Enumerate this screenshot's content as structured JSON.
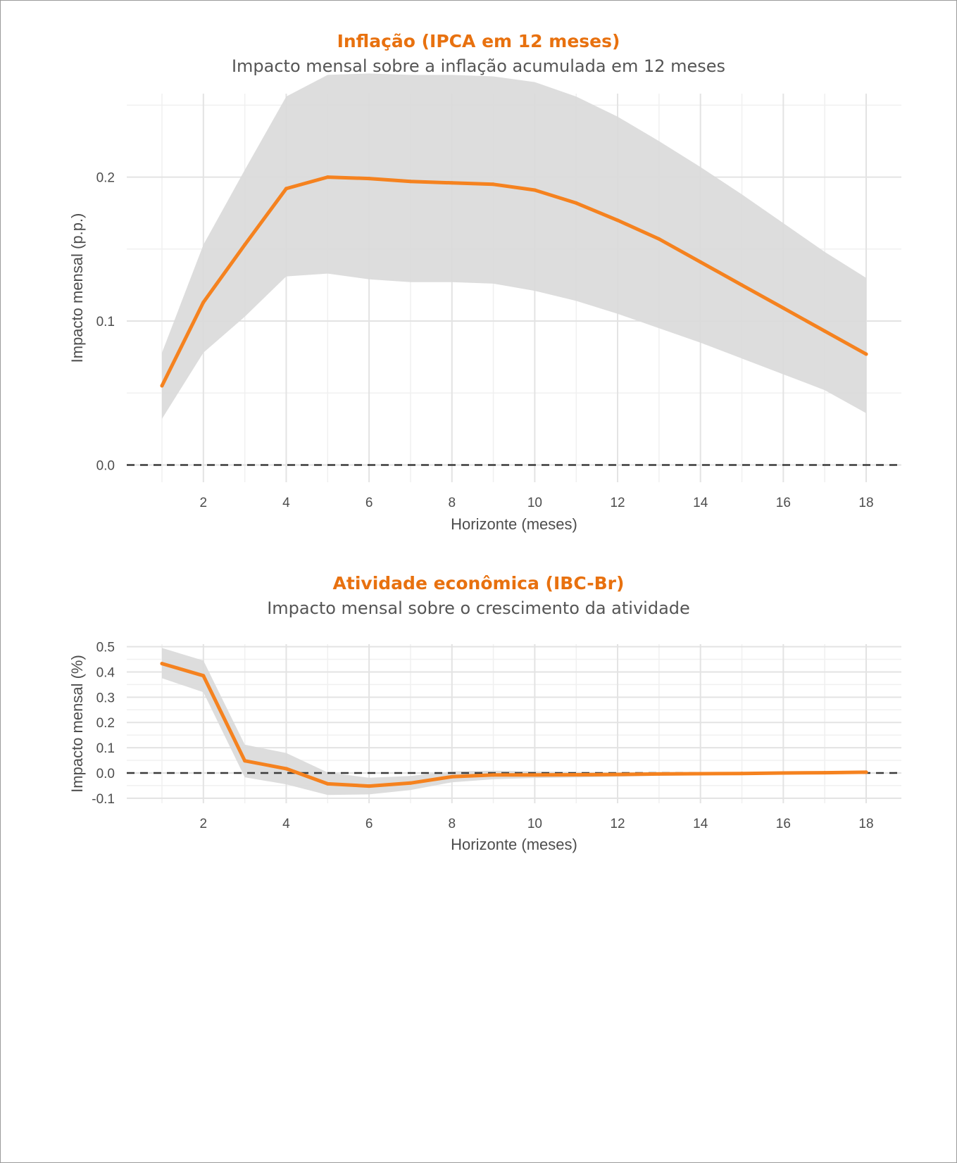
{
  "colors": {
    "line": "#F5821F",
    "band": "#D9D9D9",
    "grid_major": "#E3E3E3",
    "grid_minor": "#F0F0F0",
    "zero_line": "#3a3a3a",
    "title": "#E8710F"
  },
  "chart_data": [
    {
      "type": "line",
      "title": "Inflação (IPCA em 12 meses)",
      "subtitle": "Impacto mensal sobre a inflação acumulada em 12 meses",
      "xlabel": "Horizonte (meses)",
      "ylabel": "Impacto mensal (p.p.)",
      "xlim": [
        0.15,
        18.85
      ],
      "ylim": [
        -0.012,
        0.258
      ],
      "xticks": [
        2,
        4,
        6,
        8,
        10,
        12,
        14,
        16,
        18
      ],
      "yticks": [
        0.0,
        0.1,
        0.2
      ],
      "ytick_labels": [
        "0.0",
        "0.1",
        "0.2"
      ],
      "grid": true,
      "x": [
        1,
        2,
        3,
        4,
        5,
        6,
        7,
        8,
        9,
        10,
        11,
        12,
        13,
        14,
        15,
        16,
        17,
        18
      ],
      "series": [
        {
          "values": [
            0.055,
            0.113,
            0.153,
            0.192,
            0.2,
            0.199,
            0.197,
            0.196,
            0.195,
            0.191,
            0.182,
            0.17,
            0.157,
            0.141,
            0.125,
            0.109,
            0.093,
            0.077
          ],
          "lower": [
            0.032,
            0.078,
            0.103,
            0.131,
            0.133,
            0.129,
            0.127,
            0.127,
            0.126,
            0.121,
            0.114,
            0.105,
            0.095,
            0.085,
            0.074,
            0.063,
            0.052,
            0.036
          ],
          "upper": [
            0.078,
            0.153,
            0.205,
            0.256,
            0.271,
            0.272,
            0.271,
            0.271,
            0.27,
            0.266,
            0.256,
            0.242,
            0.225,
            0.207,
            0.188,
            0.168,
            0.148,
            0.13
          ]
        }
      ],
      "reference_line": 0
    },
    {
      "type": "line",
      "title": "Atividade econômica (IBC-Br)",
      "subtitle": "Impacto mensal sobre o crescimento da atividade",
      "xlabel": "Horizonte (meses)",
      "ylabel": "Impacto mensal (%)",
      "xlim": [
        0.15,
        18.85
      ],
      "ylim": [
        -0.12,
        0.51
      ],
      "xticks": [
        2,
        4,
        6,
        8,
        10,
        12,
        14,
        16,
        18
      ],
      "yticks": [
        -0.1,
        0.0,
        0.1,
        0.2,
        0.3,
        0.4,
        0.5
      ],
      "ytick_labels": [
        "-0.1",
        "0.0",
        "0.1",
        "0.2",
        "0.3",
        "0.4",
        "0.5"
      ],
      "grid": true,
      "x": [
        1,
        2,
        3,
        4,
        5,
        6,
        7,
        8,
        9,
        10,
        11,
        12,
        13,
        14,
        15,
        16,
        17,
        18
      ],
      "series": [
        {
          "values": [
            0.433,
            0.385,
            0.048,
            0.017,
            -0.043,
            -0.052,
            -0.04,
            -0.015,
            -0.008,
            -0.008,
            -0.007,
            -0.006,
            -0.004,
            -0.003,
            -0.002,
            0.0,
            0.001,
            0.003
          ],
          "lower": [
            0.375,
            0.32,
            -0.017,
            -0.045,
            -0.087,
            -0.085,
            -0.068,
            -0.037,
            -0.025,
            -0.02,
            -0.018,
            -0.015,
            -0.011,
            -0.009,
            -0.007,
            -0.005,
            -0.003,
            -0.002
          ],
          "upper": [
            0.495,
            0.445,
            0.112,
            0.079,
            0.002,
            -0.019,
            -0.012,
            0.006,
            0.009,
            0.006,
            0.004,
            0.003,
            0.004,
            0.004,
            0.004,
            0.005,
            0.006,
            0.008
          ]
        }
      ],
      "reference_line": 0
    }
  ]
}
